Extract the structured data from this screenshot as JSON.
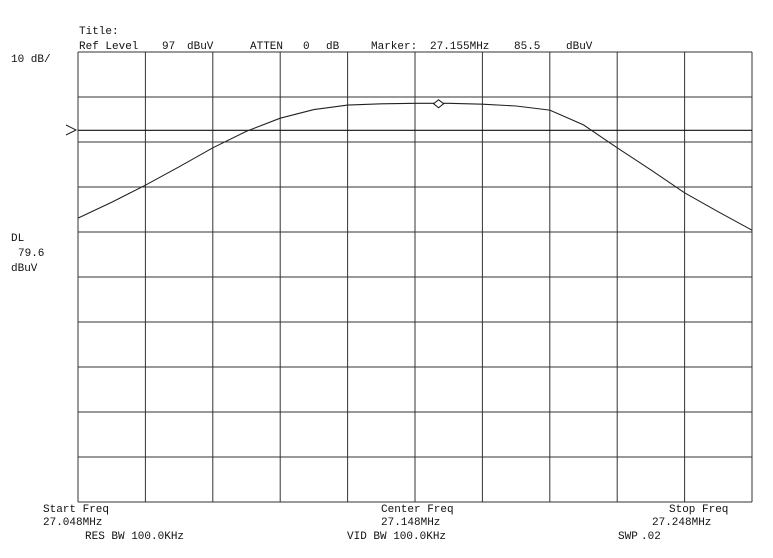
{
  "chart_data": {
    "type": "line",
    "title": "Title:",
    "ref_level": {
      "label": "Ref Level",
      "value": 97,
      "unit": "dBuV"
    },
    "atten": {
      "label": "ATTEN",
      "value": 0,
      "unit": "dB"
    },
    "marker": {
      "label": "Marker:",
      "x": 27.155,
      "x_label": "27.155MHz",
      "value": 85.5,
      "unit": "dBuV"
    },
    "scale": "10 dB/",
    "display_line": {
      "label": "DL",
      "value": 79.6,
      "unit": "dBuV"
    },
    "start": {
      "label": "Start Freq",
      "value_label": "27.048MHz"
    },
    "center": {
      "label": "Center Freq",
      "value_label": "27.148MHz"
    },
    "stop": {
      "label": "Stop Freq",
      "value_label": "27.248MHz"
    },
    "res_bw": "RES BW 100.0KHz",
    "vid_bw": "VID BW 100.0KHz",
    "sweep": {
      "label": "SWP",
      "value_label": ".02"
    },
    "x": [
      27.048,
      27.058,
      27.068,
      27.078,
      27.088,
      27.098,
      27.108,
      27.118,
      27.128,
      27.138,
      27.148,
      27.158,
      27.168,
      27.178,
      27.188,
      27.198,
      27.208,
      27.218,
      27.228,
      27.238,
      27.248
    ],
    "values": [
      60.1,
      63.6,
      67.4,
      71.5,
      75.7,
      79.4,
      82.3,
      84.2,
      85.2,
      85.5,
      85.6,
      85.6,
      85.4,
      85.0,
      84.1,
      80.8,
      75.7,
      70.8,
      65.7,
      61.5,
      57.4
    ],
    "color": "#222222",
    "xlim": [
      27.048,
      27.248
    ],
    "ylim": [
      -3,
      97
    ],
    "xticks": [
      27.048,
      27.068,
      27.088,
      27.108,
      27.128,
      27.148,
      27.168,
      27.188,
      27.208,
      27.228,
      27.248
    ],
    "yticks": [
      -3,
      7,
      17,
      27,
      37,
      47,
      57,
      67,
      77,
      87,
      97
    ],
    "grid": true
  }
}
